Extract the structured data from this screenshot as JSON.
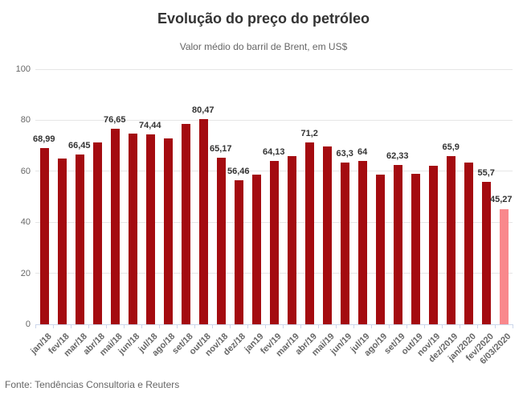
{
  "title": "Evolução do preço do petróleo",
  "subtitle": "Valor médio do barril de Brent, em US$",
  "source": "Fonte: Tendências Consultoria e Reuters",
  "colors": {
    "bar": "#a40b10",
    "bar_highlight": "#f9888c",
    "grid": "#e6e6e6",
    "axis": "#ccd6eb",
    "value_label": "#333333",
    "axis_text": "#666666"
  },
  "chart_data": {
    "type": "bar",
    "title": "Evolução do preço do petróleo",
    "subtitle": "Valor médio do barril de Brent, em US$",
    "xlabel": "",
    "ylabel": "",
    "ylim": [
      0,
      100
    ],
    "yticks": [
      0,
      20,
      40,
      60,
      80,
      100
    ],
    "grid": true,
    "legend": false,
    "categories": [
      "jan/18",
      "fev/18",
      "mar/18",
      "abr/18",
      "mai/18",
      "jun/18",
      "jul/18",
      "ago/18",
      "set/18",
      "out/18",
      "nov/18",
      "dez/18",
      "jan19",
      "fev/19",
      "mar/19",
      "abr/19",
      "mai/19",
      "jun/19",
      "jul/19",
      "ago/19",
      "set/19",
      "out/19",
      "nov/19",
      "dez/2019",
      "jan/2020",
      "fev/2020",
      "6/03/2020"
    ],
    "values": [
      68.99,
      65.0,
      66.45,
      71.3,
      76.65,
      74.9,
      74.44,
      72.9,
      78.5,
      80.47,
      65.17,
      56.46,
      58.8,
      64.13,
      66.0,
      71.2,
      69.7,
      63.3,
      64,
      58.6,
      62.33,
      59.1,
      62.3,
      65.9,
      63.4,
      55.7,
      45.27
    ],
    "data_labels": [
      "68,99",
      "",
      "66,45",
      "",
      "76,65",
      "",
      "74,44",
      "",
      "",
      "80,47",
      "65,17",
      "56,46",
      "",
      "64,13",
      "",
      "71,2",
      "",
      "63,3",
      "64",
      "",
      "62,33",
      "",
      "",
      "65,9",
      "",
      "55,7",
      "45,27"
    ],
    "highlight_index": 26
  }
}
